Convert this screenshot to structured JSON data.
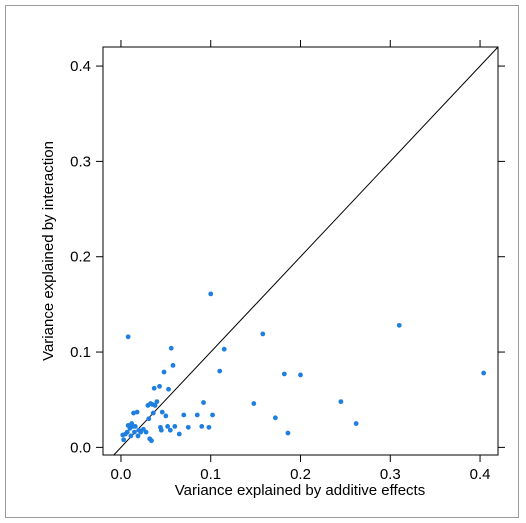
{
  "chart_data": {
    "type": "scatter",
    "xlabel": "Variance explained by additive effects",
    "ylabel": "Variance explained by interaction",
    "xlim": [
      -0.02,
      0.42
    ],
    "ylim": [
      -0.008,
      0.42
    ],
    "xticks": [
      0.0,
      0.1,
      0.2,
      0.3,
      0.4
    ],
    "yticks": [
      0.0,
      0.1,
      0.2,
      0.3,
      0.4
    ],
    "xtick_labels": [
      "0.0",
      "0.1",
      "0.2",
      "0.3",
      "0.4"
    ],
    "ytick_labels": [
      "0.0",
      "0.1",
      "0.2",
      "0.3",
      "0.4"
    ],
    "reference_line": "y = x",
    "point_color": "#1e7fe0",
    "grid": false,
    "points": [
      [
        0.003,
        0.008
      ],
      [
        0.002,
        0.013
      ],
      [
        0.005,
        0.014
      ],
      [
        0.007,
        0.016
      ],
      [
        0.008,
        0.023
      ],
      [
        0.01,
        0.02
      ],
      [
        0.011,
        0.012
      ],
      [
        0.012,
        0.025
      ],
      [
        0.013,
        0.022
      ],
      [
        0.014,
        0.036
      ],
      [
        0.015,
        0.016
      ],
      [
        0.016,
        0.022
      ],
      [
        0.018,
        0.037
      ],
      [
        0.019,
        0.012
      ],
      [
        0.02,
        0.018
      ],
      [
        0.022,
        0.016
      ],
      [
        0.025,
        0.019
      ],
      [
        0.028,
        0.016
      ],
      [
        0.03,
        0.044
      ],
      [
        0.031,
        0.03
      ],
      [
        0.032,
        0.009
      ],
      [
        0.033,
        0.046
      ],
      [
        0.034,
        0.007
      ],
      [
        0.035,
        0.045
      ],
      [
        0.036,
        0.036
      ],
      [
        0.037,
        0.062
      ],
      [
        0.038,
        0.044
      ],
      [
        0.04,
        0.048
      ],
      [
        0.043,
        0.064
      ],
      [
        0.044,
        0.021
      ],
      [
        0.045,
        0.018
      ],
      [
        0.046,
        0.037
      ],
      [
        0.048,
        0.079
      ],
      [
        0.05,
        0.033
      ],
      [
        0.052,
        0.022
      ],
      [
        0.055,
        0.018
      ],
      [
        0.056,
        0.104
      ],
      [
        0.058,
        0.086
      ],
      [
        0.053,
        0.061
      ],
      [
        0.06,
        0.022
      ],
      [
        0.065,
        0.014
      ],
      [
        0.07,
        0.034
      ],
      [
        0.075,
        0.021
      ],
      [
        0.085,
        0.034
      ],
      [
        0.09,
        0.022
      ],
      [
        0.092,
        0.047
      ],
      [
        0.098,
        0.021
      ],
      [
        0.1,
        0.161
      ],
      [
        0.102,
        0.034
      ],
      [
        0.11,
        0.08
      ],
      [
        0.115,
        0.103
      ],
      [
        0.148,
        0.046
      ],
      [
        0.158,
        0.119
      ],
      [
        0.172,
        0.031
      ],
      [
        0.182,
        0.077
      ],
      [
        0.186,
        0.015
      ],
      [
        0.2,
        0.076
      ],
      [
        0.245,
        0.048
      ],
      [
        0.262,
        0.025
      ],
      [
        0.31,
        0.128
      ],
      [
        0.404,
        0.078
      ],
      [
        0.008,
        0.116
      ]
    ]
  }
}
